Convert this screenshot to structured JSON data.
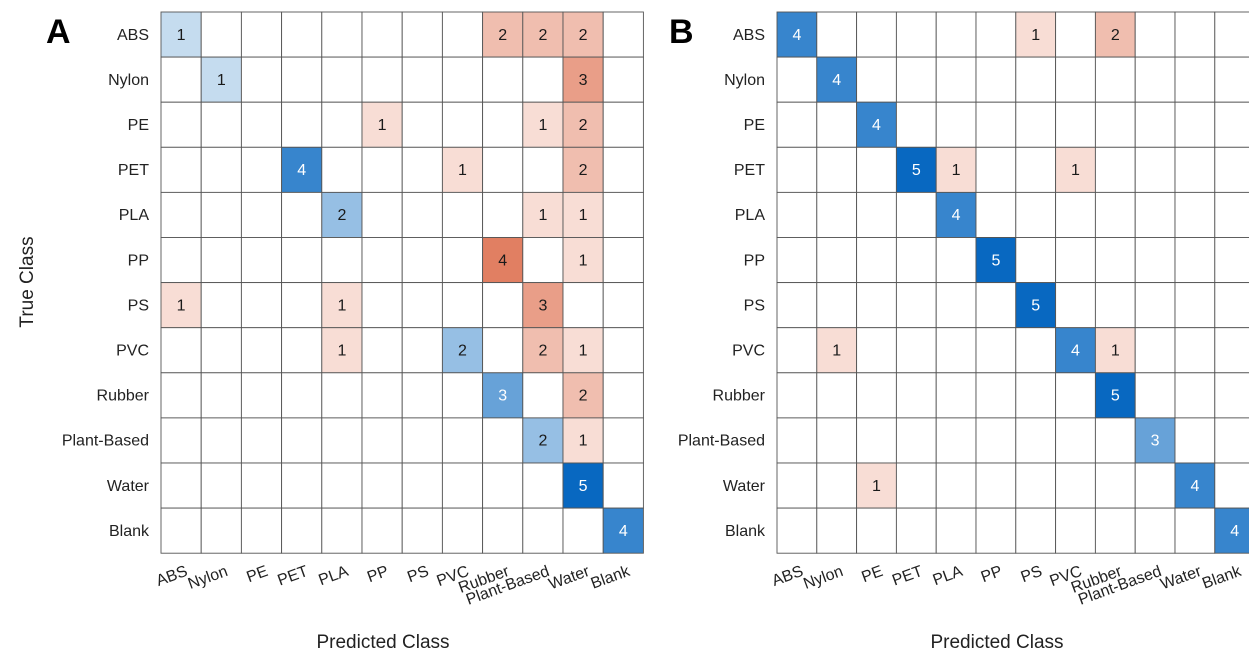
{
  "figure": {
    "ylabel": "True Class",
    "xlabel": "Predicted Class"
  },
  "colors": {
    "grid": "#555555",
    "diag_light": "#c5dcef",
    "diag_strong": "#0868c1",
    "offdiag_light": "#f8ddd5",
    "offdiag_strong": "#d95f3b"
  },
  "chart_data": [
    {
      "type": "heatmap",
      "panel_label": "A",
      "title": "",
      "xlabel": "Predicted Class",
      "ylabel": "True Class",
      "categories": [
        "ABS",
        "Nylon",
        "PE",
        "PET",
        "PLA",
        "PP",
        "PS",
        "PVC",
        "Rubber",
        "Plant-Based",
        "Water",
        "Blank"
      ],
      "rows": [
        "ABS",
        "Nylon",
        "PE",
        "PET",
        "PLA",
        "PP",
        "PS",
        "PVC",
        "Rubber",
        "Plant-Based",
        "Water",
        "Blank"
      ],
      "matrix": [
        [
          1,
          0,
          0,
          0,
          0,
          0,
          0,
          0,
          2,
          2,
          2,
          0
        ],
        [
          0,
          1,
          0,
          0,
          0,
          0,
          0,
          0,
          0,
          0,
          3,
          0
        ],
        [
          0,
          0,
          0,
          0,
          0,
          1,
          0,
          0,
          0,
          1,
          2,
          0
        ],
        [
          0,
          0,
          0,
          4,
          0,
          0,
          0,
          1,
          0,
          0,
          2,
          0
        ],
        [
          0,
          0,
          0,
          0,
          2,
          0,
          0,
          0,
          0,
          1,
          1,
          0
        ],
        [
          0,
          0,
          0,
          0,
          0,
          0,
          0,
          0,
          4,
          0,
          1,
          0
        ],
        [
          1,
          0,
          0,
          0,
          1,
          0,
          0,
          0,
          0,
          3,
          0,
          0
        ],
        [
          0,
          0,
          0,
          0,
          1,
          0,
          0,
          2,
          0,
          2,
          1,
          0
        ],
        [
          0,
          0,
          0,
          0,
          0,
          0,
          0,
          0,
          3,
          0,
          2,
          0
        ],
        [
          0,
          0,
          0,
          0,
          0,
          0,
          0,
          0,
          0,
          2,
          1,
          0
        ],
        [
          0,
          0,
          0,
          0,
          0,
          0,
          0,
          0,
          0,
          0,
          5,
          0
        ],
        [
          0,
          0,
          0,
          0,
          0,
          0,
          0,
          0,
          0,
          0,
          0,
          4
        ]
      ],
      "grid": true
    },
    {
      "type": "heatmap",
      "panel_label": "B",
      "title": "",
      "xlabel": "Predicted Class",
      "ylabel": "",
      "categories": [
        "ABS",
        "Nylon",
        "PE",
        "PET",
        "PLA",
        "PP",
        "PS",
        "PVC",
        "Rubber",
        "Plant-Based",
        "Water",
        "Blank"
      ],
      "rows": [
        "ABS",
        "Nylon",
        "PE",
        "PET",
        "PLA",
        "PP",
        "PS",
        "PVC",
        "Rubber",
        "Plant-Based",
        "Water",
        "Blank"
      ],
      "matrix": [
        [
          4,
          0,
          0,
          0,
          0,
          0,
          1,
          0,
          2,
          0,
          0,
          0
        ],
        [
          0,
          4,
          0,
          0,
          0,
          0,
          0,
          0,
          0,
          0,
          0,
          0
        ],
        [
          0,
          0,
          4,
          0,
          0,
          0,
          0,
          0,
          0,
          0,
          0,
          0
        ],
        [
          0,
          0,
          0,
          5,
          1,
          0,
          0,
          1,
          0,
          0,
          0,
          0
        ],
        [
          0,
          0,
          0,
          0,
          4,
          0,
          0,
          0,
          0,
          0,
          0,
          0
        ],
        [
          0,
          0,
          0,
          0,
          0,
          5,
          0,
          0,
          0,
          0,
          0,
          0
        ],
        [
          0,
          0,
          0,
          0,
          0,
          0,
          5,
          0,
          0,
          0,
          0,
          0
        ],
        [
          0,
          1,
          0,
          0,
          0,
          0,
          0,
          4,
          1,
          0,
          0,
          0
        ],
        [
          0,
          0,
          0,
          0,
          0,
          0,
          0,
          0,
          5,
          0,
          0,
          0
        ],
        [
          0,
          0,
          0,
          0,
          0,
          0,
          0,
          0,
          0,
          3,
          0,
          0
        ],
        [
          0,
          0,
          1,
          0,
          0,
          0,
          0,
          0,
          0,
          0,
          4,
          0
        ],
        [
          0,
          0,
          0,
          0,
          0,
          0,
          0,
          0,
          0,
          0,
          0,
          4
        ]
      ],
      "grid": true
    }
  ]
}
